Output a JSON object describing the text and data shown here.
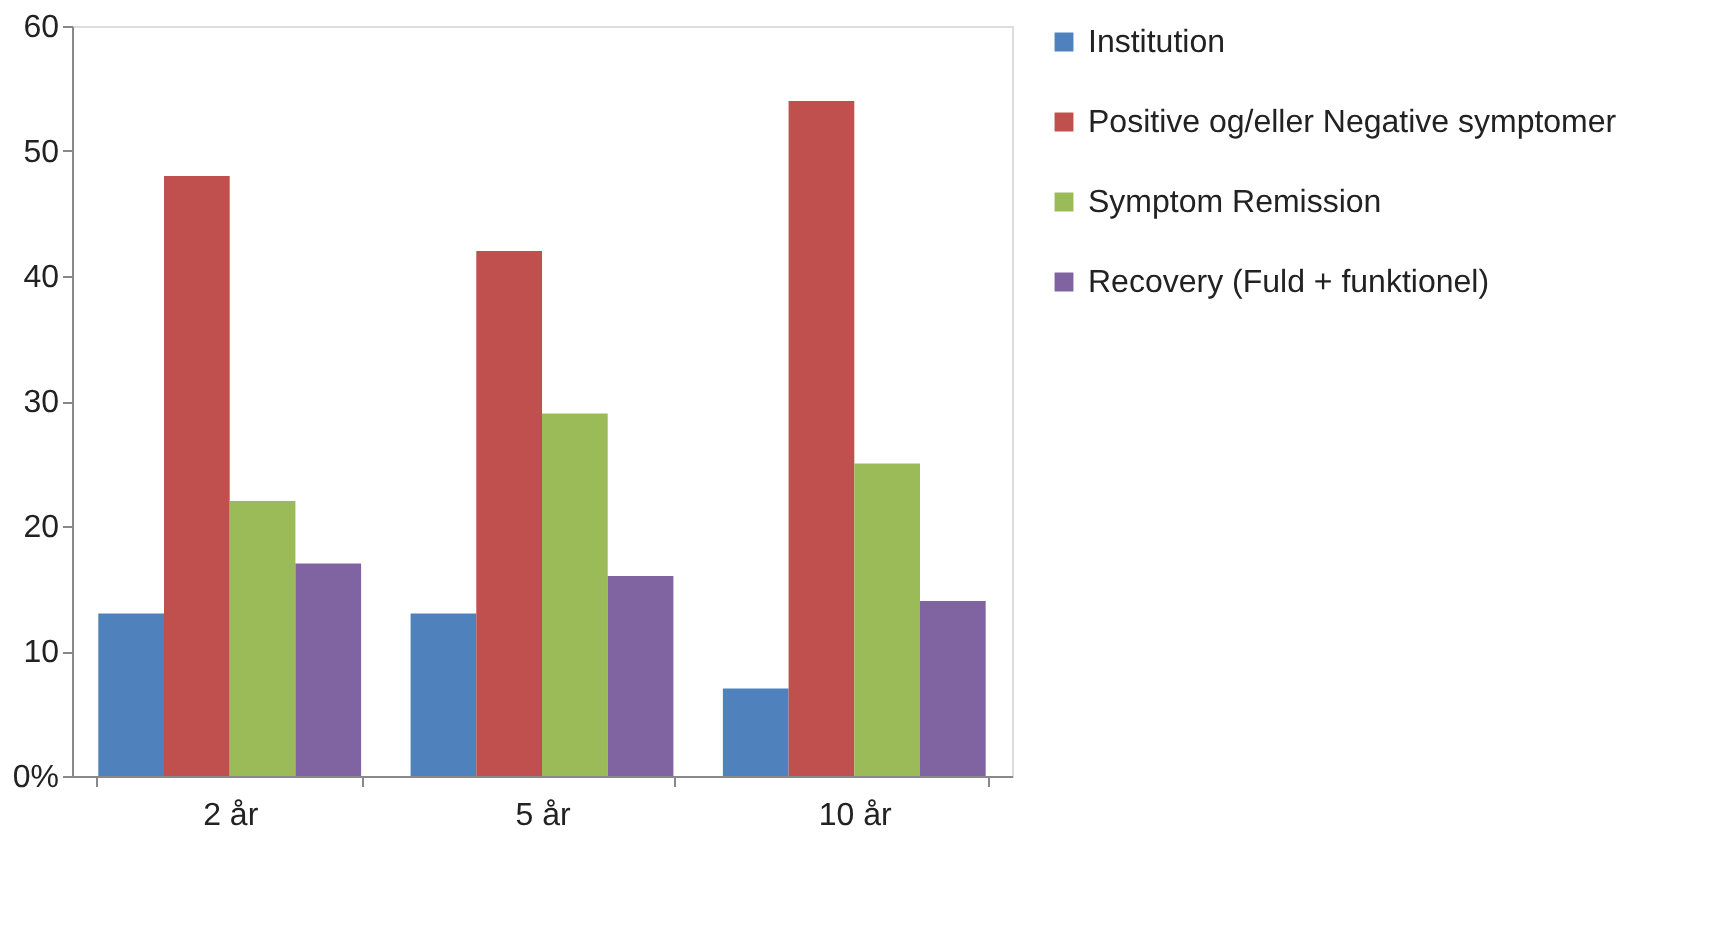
{
  "chart_data": {
    "type": "bar",
    "categories": [
      "2 år",
      "5 år",
      "10 år"
    ],
    "series": [
      {
        "name": "Institution",
        "color": "#4f81bd",
        "values": [
          13,
          13,
          7
        ]
      },
      {
        "name": "Positive og/eller Negative symptomer",
        "color": "#c0504d",
        "values": [
          48,
          42,
          54
        ]
      },
      {
        "name": "Symptom Remission",
        "color": "#9bbb59",
        "values": [
          22,
          29,
          25
        ]
      },
      {
        "name": " Recovery (Fuld + funktionel)",
        "color": "#8064a2",
        "values": [
          17,
          16,
          14
        ]
      }
    ],
    "ylim": [
      0,
      60
    ],
    "yticks": [
      {
        "value": 0,
        "label": "0%"
      },
      10,
      20,
      30,
      40,
      50,
      60
    ],
    "grid": false,
    "legend": "right"
  }
}
